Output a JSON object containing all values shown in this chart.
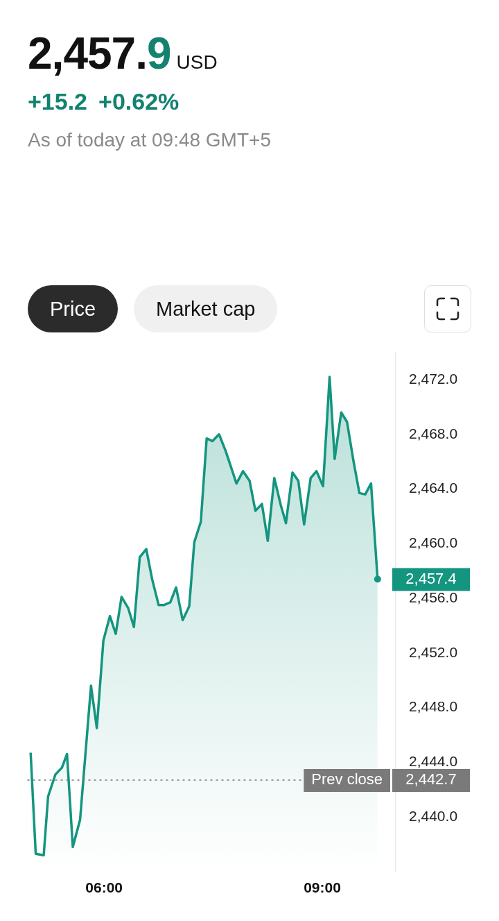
{
  "chart_data": {
    "type": "area",
    "title": "2,457.9",
    "subtitle": "USD",
    "annotations": [
      "+15.2",
      "+0.62%",
      "As of today at 09:48 GMT+5",
      "Price",
      "Market cap",
      "2,442.7"
    ],
    "ylim": [
      2436,
      2474
    ],
    "x": [
      4.99,
      5.06,
      5.17,
      5.23,
      5.33,
      5.42,
      5.49,
      5.57,
      5.67,
      5.82,
      5.9,
      5.99,
      6.08,
      6.16,
      6.24,
      6.33,
      6.41,
      6.49,
      6.58,
      6.66,
      6.75,
      6.82,
      6.91,
      6.99,
      7.08,
      7.17,
      7.24,
      7.33,
      7.41,
      7.49,
      7.58,
      7.67,
      7.82,
      7.91,
      8.0,
      8.08,
      8.17,
      8.25,
      8.34,
      8.43,
      8.5,
      8.59,
      8.67,
      8.75,
      8.84,
      8.92,
      9.01,
      9.1,
      9.17,
      9.26,
      9.34,
      9.43,
      9.51,
      9.59,
      9.67,
      9.76
    ],
    "series": [
      {
        "color": "#14957f",
        "values": [
          2444.7,
          2437.3,
          2437.2,
          2441.5,
          2443.1,
          2443.6,
          2444.6,
          2437.8,
          2439.8,
          2449.6,
          2446.5,
          2452.9,
          2454.7,
          2453.4,
          2456.1,
          2455.3,
          2453.9,
          2459.0,
          2459.6,
          2457.4,
          2455.5,
          2455.5,
          2455.7,
          2456.8,
          2454.4,
          2455.4,
          2460.1,
          2461.6,
          2467.7,
          2467.5,
          2468.0,
          2466.8,
          2464.4,
          2465.3,
          2464.6,
          2462.4,
          2462.9,
          2460.2,
          2464.8,
          2462.8,
          2461.5,
          2465.2,
          2464.6,
          2461.4,
          2464.8,
          2465.3,
          2464.2,
          2472.2,
          2466.2,
          2469.6,
          2468.9,
          2466.0,
          2463.7,
          2463.6,
          2464.4,
          2457.4
        ],
        "value_labels": [
          null,
          null,
          null,
          null,
          null,
          null,
          null,
          null,
          null,
          null,
          null,
          null,
          null,
          null,
          null,
          null,
          null,
          null,
          null,
          null,
          null,
          null,
          null,
          null,
          null,
          null,
          null,
          null,
          null,
          null,
          null,
          null,
          null,
          null,
          null,
          null,
          null,
          null,
          null,
          null,
          null,
          null,
          null,
          null,
          null,
          null,
          null,
          null,
          null,
          null,
          null,
          null,
          null,
          null,
          null,
          "2,457.4"
        ]
      }
    ],
    "xlim": [
      4.95,
      10.0
    ],
    "xticks": [
      {
        "value": 6,
        "label": "06:00"
      },
      {
        "value": 9,
        "label": "09:00"
      }
    ],
    "yticks": [
      {
        "value": 2440,
        "label": "2,440.0"
      },
      {
        "value": 2444,
        "label": "2,444.0"
      },
      {
        "value": 2448,
        "label": "2,448.0"
      },
      {
        "value": 2452,
        "label": "2,452.0"
      },
      {
        "value": 2456,
        "label": "2,456.0"
      },
      {
        "value": 2460,
        "label": "2,460.0"
      },
      {
        "value": 2464,
        "label": "2,464.0"
      },
      {
        "value": 2468,
        "label": "2,468.0"
      },
      {
        "value": 2472,
        "label": "2,472.0"
      }
    ],
    "ref_lines": [
      {
        "axis": "y",
        "value": 2442.7,
        "label": "Prev close",
        "color": "#7a7a7a",
        "line_style": "dotted"
      }
    ],
    "grid": false,
    "legend": false,
    "marker": "none",
    "line_style": "solid"
  }
}
